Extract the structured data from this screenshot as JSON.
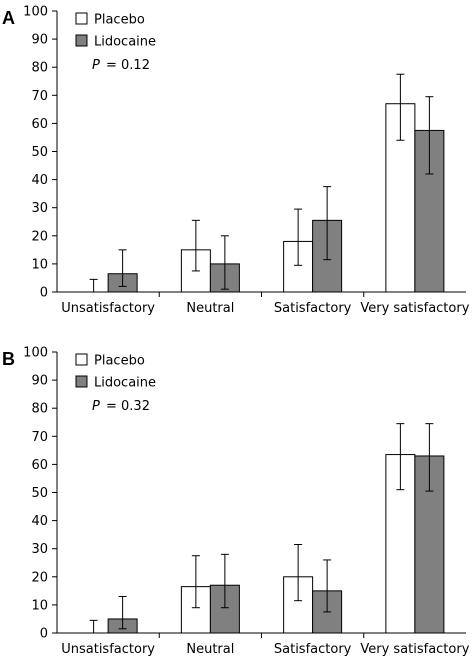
{
  "chart_data": [
    {
      "type": "bar",
      "panel": "A",
      "categories": [
        "Unsatisfactory",
        "Neutral",
        "Satisfactory",
        "Very satisfactory"
      ],
      "series": [
        {
          "name": "Placebo",
          "color": "#ffffff",
          "values": [
            0,
            15,
            18,
            67
          ],
          "error_upper": [
            4.5,
            25.5,
            29.5,
            77.5
          ],
          "error_lower": [
            0,
            7.5,
            9.5,
            54
          ]
        },
        {
          "name": "Lidocaine",
          "color": "#808080",
          "values": [
            6.5,
            10,
            25.5,
            57.5
          ],
          "error_upper": [
            15,
            20,
            37.5,
            69.5
          ],
          "error_lower": [
            2,
            1,
            11.5,
            42
          ]
        }
      ],
      "p_symbol": "P",
      "p_value": "= 0.12",
      "ylim": [
        0,
        100
      ],
      "yticks": [
        0,
        10,
        20,
        30,
        40,
        50,
        60,
        70,
        80,
        90,
        100
      ],
      "xlabel": "",
      "ylabel": "",
      "legend_position": "top-left"
    },
    {
      "type": "bar",
      "panel": "B",
      "categories": [
        "Unsatisfactory",
        "Neutral",
        "Satisfactory",
        "Very satisfactory"
      ],
      "series": [
        {
          "name": "Placebo",
          "color": "#ffffff",
          "values": [
            0,
            16.5,
            20,
            63.5
          ],
          "error_upper": [
            4.5,
            27.5,
            31.5,
            74.5
          ],
          "error_lower": [
            0,
            9,
            11.5,
            51
          ]
        },
        {
          "name": "Lidocaine",
          "color": "#808080",
          "values": [
            5,
            17,
            15,
            63
          ],
          "error_upper": [
            13,
            28,
            26,
            74.5
          ],
          "error_lower": [
            1.5,
            9,
            7.5,
            50.5
          ]
        }
      ],
      "p_symbol": "P",
      "p_value": "= 0.32",
      "ylim": [
        0,
        100
      ],
      "yticks": [
        0,
        10,
        20,
        30,
        40,
        50,
        60,
        70,
        80,
        90,
        100
      ],
      "xlabel": "",
      "ylabel": "",
      "legend_position": "top-left"
    }
  ]
}
